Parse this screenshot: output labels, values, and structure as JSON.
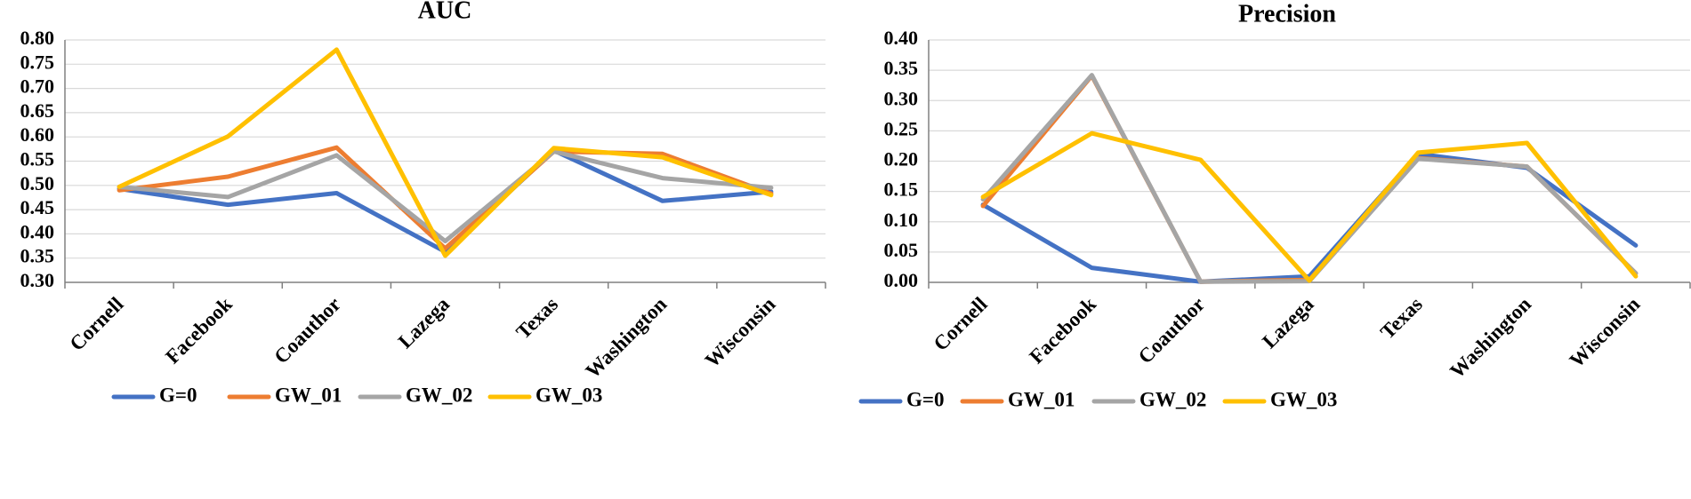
{
  "chart_data": [
    {
      "type": "line",
      "title": "AUC",
      "categories": [
        "Cornell",
        "Facebook",
        "Coauthor",
        "Lazega",
        "Texas",
        "Washington",
        "Wisconsin"
      ],
      "ylim": [
        0.3,
        0.8
      ],
      "yticks": [
        "0.30",
        "0.35",
        "0.40",
        "0.45",
        "0.50",
        "0.55",
        "0.60",
        "0.65",
        "0.70",
        "0.75",
        "0.80"
      ],
      "grid": true,
      "legend_position": "bottom",
      "series": [
        {
          "name": "G=0",
          "color": "#4472C4",
          "values": [
            0.493,
            0.46,
            0.484,
            0.363,
            0.572,
            0.468,
            0.487
          ]
        },
        {
          "name": "GW_01",
          "color": "#ED7D31",
          "values": [
            0.49,
            0.518,
            0.578,
            0.37,
            0.57,
            0.565,
            0.483
          ]
        },
        {
          "name": "GW_02",
          "color": "#A5A5A5",
          "values": [
            0.497,
            0.476,
            0.562,
            0.385,
            0.57,
            0.515,
            0.495
          ]
        },
        {
          "name": "GW_03",
          "color": "#FFC000",
          "values": [
            0.497,
            0.601,
            0.78,
            0.355,
            0.577,
            0.558,
            0.48
          ]
        }
      ]
    },
    {
      "type": "line",
      "title": "Precision",
      "categories": [
        "Cornell",
        "Facebook",
        "Coauthor",
        "Lazega",
        "Texas",
        "Washington",
        "Wisconsin"
      ],
      "ylim": [
        0.0,
        0.4
      ],
      "yticks": [
        "0.00",
        "0.05",
        "0.10",
        "0.15",
        "0.20",
        "0.25",
        "0.30",
        "0.35",
        "0.40"
      ],
      "grid": true,
      "legend_position": "bottom",
      "series": [
        {
          "name": "G=0",
          "color": "#4472C4",
          "values": [
            0.128,
            0.024,
            0.001,
            0.01,
            0.212,
            0.189,
            0.061
          ]
        },
        {
          "name": "GW_01",
          "color": "#ED7D31",
          "values": [
            0.126,
            0.341,
            0.001,
            0.004,
            0.205,
            0.191,
            0.015
          ]
        },
        {
          "name": "GW_02",
          "color": "#A5A5A5",
          "values": [
            0.137,
            0.342,
            0.001,
            0.002,
            0.204,
            0.191,
            0.015
          ]
        },
        {
          "name": "GW_03",
          "color": "#FFC000",
          "values": [
            0.141,
            0.246,
            0.202,
            0.003,
            0.214,
            0.23,
            0.01
          ]
        }
      ]
    }
  ]
}
